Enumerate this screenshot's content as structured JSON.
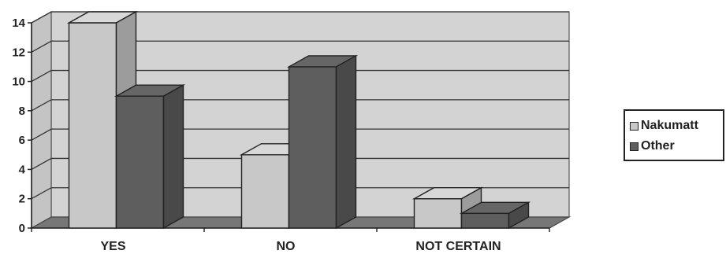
{
  "chart_data": {
    "type": "bar",
    "title": "",
    "xlabel": "",
    "ylabel": "",
    "categories": [
      "YES",
      "NO",
      "NOT CERTAIN"
    ],
    "series": [
      {
        "name": "Nakumatt",
        "values": [
          14,
          5,
          2
        ],
        "color": "#c8c8c8"
      },
      {
        "name": "Other",
        "values": [
          9,
          11,
          1
        ],
        "color": "#5e5e5e"
      }
    ],
    "ylim": [
      0,
      14
    ],
    "yticks": [
      0,
      2,
      4,
      6,
      8,
      10,
      12,
      14
    ],
    "grid": true,
    "legend": "right",
    "style": "3d",
    "background_color": "#d3d3d3"
  }
}
